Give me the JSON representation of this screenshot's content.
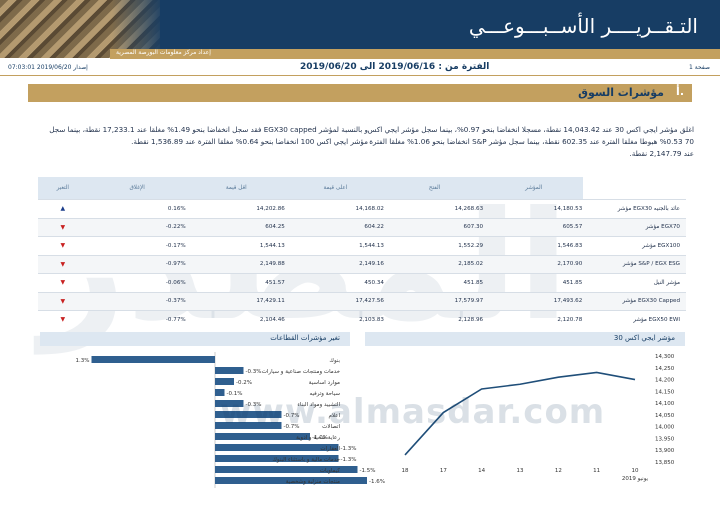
{
  "header": {
    "title": "التـقــريــــر الأســبـــوعـــي",
    "subtitle": "إعداد مركز معلومات البورصة المصرية",
    "page_label": "صفحة 1",
    "period": "الفترة من : 2019/06/16 الى 2019/06/20",
    "issue": "إصدار 2019/06/20 07:03:01"
  },
  "section": {
    "number": "أ.",
    "title": "مؤشرات السوق"
  },
  "paragraphs": [
    "اغلق مؤشر ايجي اكس 30 عند 14,043.42 نقطة، مسجلا انخفاضا بنحو 0.97%، بينما سجل مؤشر ايجي اكس 70 0.53% هبوطا مغلقا الفترة عند 602.35 نقطة، بينما سجل مؤشر S&P انخفاضا بنحو 1.06% مغلقا الفترة عند 2,147.79 نقطة.",
    "و بالنسبة لمؤشر EGX30 capped فقد سجل انخفاضا بنحو 1.49% مغلقا عند 17,233.1 نقطة، بينما سجل مؤشر ايجي اكس 100 انخفاضا بنحو 0.64% مغلقا الفترة عند 1,536.89 نقطة."
  ],
  "table": {
    "headers": [
      "المؤشر",
      "الفتح",
      "اعلى قيمة",
      "اقل قيمة",
      "الإغلاق",
      "التغير"
    ],
    "rows": [
      {
        "name": "مؤشر EGX30 عائد بالجنيه",
        "open": "14,180.53",
        "high": "14,268.63",
        "low": "14,168.02",
        "close": "14,202.86",
        "change": "0.16%",
        "dir": "up"
      },
      {
        "name": "مؤشر EGX70",
        "open": "605.57",
        "high": "607.30",
        "low": "604.22",
        "close": "604.25",
        "change": "-0.22%",
        "dir": "down"
      },
      {
        "name": "مؤشر EGX100",
        "open": "1,546.83",
        "high": "1,552.29",
        "low": "1,544.13",
        "close": "1,544.13",
        "change": "-0.17%",
        "dir": "down"
      },
      {
        "name": "مؤشر S&P / EGX ESG",
        "open": "2,170.90",
        "high": "2,185.02",
        "low": "2,149.16",
        "close": "2,149.88",
        "change": "-0.97%",
        "dir": "down"
      },
      {
        "name": "مؤشر النيل",
        "open": "451.85",
        "high": "451.85",
        "low": "450.34",
        "close": "451.57",
        "change": "-0.06%",
        "dir": "down"
      },
      {
        "name": "مؤشر EGX30 Capped",
        "open": "17,493.62",
        "high": "17,579.97",
        "low": "17,427.56",
        "close": "17,429.11",
        "change": "-0.37%",
        "dir": "down"
      },
      {
        "name": "مؤشر EGX50 EWI",
        "open": "2,120.78",
        "high": "2,128.96",
        "low": "2,103.83",
        "close": "2,104.46",
        "change": "-0.77%",
        "dir": "down"
      }
    ]
  },
  "panels": {
    "left_title": "تغير مؤشرات القطاعات",
    "right_title": "مؤشر ايجي اكس 30"
  },
  "watermark": {
    "url": "www.almasdar.com"
  },
  "chart_data": [
    {
      "type": "bar",
      "orientation": "horizontal",
      "title": "تغير مؤشرات القطاعات",
      "categories": [
        "بنوك",
        "خدمات ومنتجات صناعية و سيارات",
        "موارد اساسية",
        "سياحة وترفيه",
        "التشييد ومواد البناء",
        "اعلام",
        "اتصالات",
        "رعاية صحية و ادوية",
        "العقارات",
        "خدمات مالية و باستثناء البنوك",
        "كيماويات",
        "منتجات منزلية وشخصية"
      ],
      "values": [
        1.3,
        -0.3,
        -0.2,
        -0.1,
        -0.3,
        -0.7,
        -0.7,
        -1.0,
        -1.3,
        -1.3,
        -1.5,
        -1.6
      ],
      "value_labels": [
        "1.3%",
        "-0.3%",
        "-0.2%",
        "-0.1%",
        "-0.3%",
        "-0.7%",
        "-0.7%",
        "-1.0%",
        "-1.3%",
        "-1.3%",
        "-1.5%",
        "-1.6%"
      ]
    },
    {
      "type": "line",
      "title": "مؤشر ايجي اكس 30",
      "x": [
        "10",
        "11",
        "12",
        "13",
        "14",
        "17",
        "18"
      ],
      "x_note": "يونيو 2019",
      "y": [
        14200,
        14230,
        14210,
        14180,
        14160,
        14060,
        13880
      ],
      "yticks": [
        13850,
        13900,
        13950,
        14000,
        14050,
        14100,
        14150,
        14200,
        14250,
        14300
      ],
      "ytick_labels": [
        "13,850",
        "13,900",
        "13,950",
        "14,000",
        "14,050",
        "14,100",
        "14,150",
        "14,200",
        "14,250",
        "14,300"
      ],
      "ylim": [
        13850,
        14300
      ],
      "color": "#1f4e79"
    }
  ]
}
